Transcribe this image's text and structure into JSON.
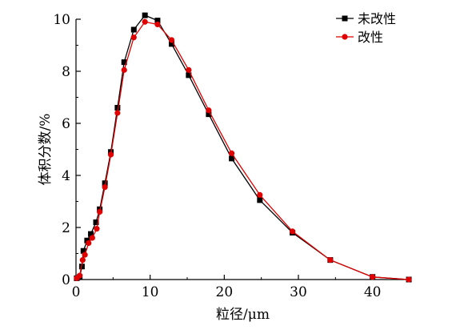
{
  "chart_data": {
    "type": "line",
    "title": "",
    "xlabel": "粒径/μm",
    "ylabel": "体积分数/%",
    "xlim": [
      0,
      45
    ],
    "ylim": [
      0,
      10
    ],
    "xticks": [
      0,
      10,
      20,
      30,
      40
    ],
    "yticks": [
      0,
      2,
      4,
      6,
      8,
      10
    ],
    "grid": false,
    "legend": "top-right",
    "series": [
      {
        "name": "未改性",
        "color": "#000000",
        "marker": "square",
        "x": [
          0.1,
          0.5,
          0.8,
          1.0,
          1.5,
          2.0,
          2.7,
          3.2,
          3.9,
          4.7,
          5.6,
          6.5,
          7.8,
          9.3,
          11.0,
          12.9,
          15.2,
          17.9,
          21.0,
          24.8,
          29.2,
          34.3,
          40.0,
          44.9
        ],
        "y": [
          0.05,
          0.1,
          0.5,
          1.1,
          1.5,
          1.75,
          2.2,
          2.7,
          3.7,
          4.9,
          6.6,
          8.35,
          9.6,
          10.15,
          9.95,
          9.05,
          7.85,
          6.35,
          4.65,
          3.05,
          1.8,
          0.75,
          0.1,
          0.0
        ]
      },
      {
        "name": "改性",
        "color": "#e00000",
        "marker": "circle",
        "x": [
          0.1,
          0.5,
          0.9,
          1.2,
          1.7,
          2.2,
          2.8,
          3.2,
          3.9,
          4.7,
          5.6,
          6.5,
          7.8,
          9.3,
          11.0,
          12.9,
          15.2,
          17.9,
          21.0,
          24.8,
          29.2,
          34.3,
          40.0,
          44.9
        ],
        "y": [
          0.05,
          0.15,
          0.75,
          0.95,
          1.4,
          1.6,
          1.95,
          2.6,
          3.55,
          4.8,
          6.4,
          8.05,
          9.3,
          9.9,
          9.8,
          9.2,
          8.05,
          6.5,
          4.85,
          3.25,
          1.85,
          0.75,
          0.1,
          0.0
        ]
      }
    ]
  }
}
